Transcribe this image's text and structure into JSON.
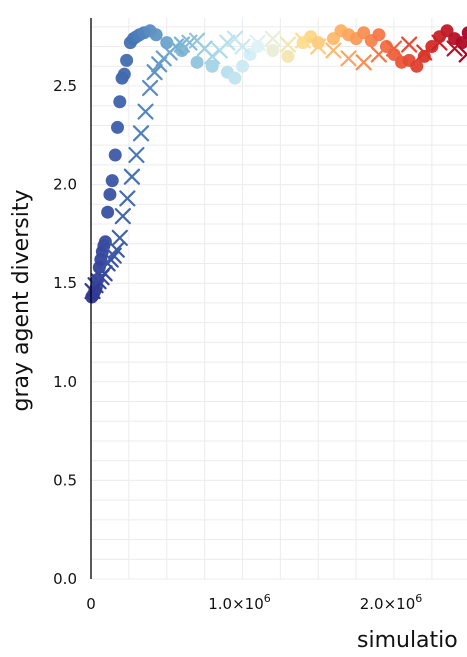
{
  "chart_data": {
    "type": "scatter",
    "xlabel": "simulatio",
    "ylabel": "gray agent diversity",
    "xlim": [
      0,
      2500000
    ],
    "ylim": [
      0,
      2.8
    ],
    "x_ticks": [
      {
        "value": 0,
        "label": "0"
      },
      {
        "value": 1000000,
        "label": "1.0×10",
        "exp": "6"
      },
      {
        "value": 2000000,
        "label": "2.0×10",
        "exp": "6"
      }
    ],
    "y_ticks": [
      {
        "value": 0.0,
        "label": "0.0"
      },
      {
        "value": 0.5,
        "label": "0.5"
      },
      {
        "value": 1.0,
        "label": "1.0"
      },
      {
        "value": 1.5,
        "label": "1.5"
      },
      {
        "value": 2.0,
        "label": "2.0"
      },
      {
        "value": 2.5,
        "label": "2.5"
      }
    ],
    "grid": true,
    "legend": "none",
    "series": [
      {
        "marker": "circle",
        "color_scale": [
          "#313695",
          "#4575b4",
          "#74add1",
          "#abd9e9",
          "#e0f3f8",
          "#fee090",
          "#fdae61",
          "#f46d43",
          "#d73027",
          "#a50026"
        ],
        "points": [
          [
            5000,
            1.43
          ],
          [
            15000,
            1.44
          ],
          [
            25000,
            1.46
          ],
          [
            35000,
            1.48
          ],
          [
            45000,
            1.52
          ],
          [
            55000,
            1.58
          ],
          [
            65000,
            1.62
          ],
          [
            75000,
            1.66
          ],
          [
            85000,
            1.69
          ],
          [
            95000,
            1.71
          ],
          [
            110000,
            1.86
          ],
          [
            125000,
            1.95
          ],
          [
            140000,
            2.02
          ],
          [
            160000,
            2.15
          ],
          [
            175000,
            2.29
          ],
          [
            190000,
            2.42
          ],
          [
            205000,
            2.54
          ],
          [
            220000,
            2.56
          ],
          [
            235000,
            2.63
          ],
          [
            260000,
            2.72
          ],
          [
            280000,
            2.74
          ],
          [
            300000,
            2.75
          ],
          [
            320000,
            2.76
          ],
          [
            350000,
            2.77
          ],
          [
            390000,
            2.78
          ],
          [
            430000,
            2.76
          ],
          [
            500000,
            2.72
          ],
          [
            600000,
            2.68
          ],
          [
            700000,
            2.62
          ],
          [
            800000,
            2.6
          ],
          [
            900000,
            2.57
          ],
          [
            950000,
            2.54
          ],
          [
            1000000,
            2.6
          ],
          [
            1050000,
            2.66
          ],
          [
            1100000,
            2.7
          ],
          [
            1200000,
            2.68
          ],
          [
            1300000,
            2.65
          ],
          [
            1400000,
            2.72
          ],
          [
            1450000,
            2.75
          ],
          [
            1500000,
            2.72
          ],
          [
            1600000,
            2.74
          ],
          [
            1650000,
            2.78
          ],
          [
            1700000,
            2.76
          ],
          [
            1750000,
            2.74
          ],
          [
            1800000,
            2.77
          ],
          [
            1850000,
            2.73
          ],
          [
            1900000,
            2.76
          ],
          [
            1950000,
            2.7
          ],
          [
            2000000,
            2.66
          ],
          [
            2050000,
            2.62
          ],
          [
            2100000,
            2.63
          ],
          [
            2150000,
            2.6
          ],
          [
            2200000,
            2.65
          ],
          [
            2250000,
            2.7
          ],
          [
            2300000,
            2.75
          ],
          [
            2350000,
            2.78
          ],
          [
            2400000,
            2.74
          ],
          [
            2450000,
            2.72
          ],
          [
            2490000,
            2.77
          ]
        ]
      },
      {
        "marker": "x",
        "color_scale": [
          "#313695",
          "#4575b4",
          "#74add1",
          "#abd9e9",
          "#e0f3f8",
          "#fee090",
          "#fdae61",
          "#f46d43",
          "#d73027",
          "#a50026"
        ],
        "points": [
          [
            10000,
            1.46
          ],
          [
            30000,
            1.49
          ],
          [
            50000,
            1.51
          ],
          [
            70000,
            1.53
          ],
          [
            90000,
            1.55
          ],
          [
            110000,
            1.6
          ],
          [
            130000,
            1.62
          ],
          [
            150000,
            1.64
          ],
          [
            170000,
            1.67
          ],
          [
            190000,
            1.73
          ],
          [
            210000,
            1.84
          ],
          [
            240000,
            1.93
          ],
          [
            270000,
            2.04
          ],
          [
            300000,
            2.15
          ],
          [
            330000,
            2.26
          ],
          [
            360000,
            2.37
          ],
          [
            390000,
            2.49
          ],
          [
            420000,
            2.57
          ],
          [
            450000,
            2.61
          ],
          [
            480000,
            2.64
          ],
          [
            520000,
            2.67
          ],
          [
            560000,
            2.7
          ],
          [
            600000,
            2.71
          ],
          [
            650000,
            2.72
          ],
          [
            700000,
            2.73
          ],
          [
            750000,
            2.69
          ],
          [
            800000,
            2.65
          ],
          [
            850000,
            2.68
          ],
          [
            900000,
            2.72
          ],
          [
            950000,
            2.74
          ],
          [
            1000000,
            2.7
          ],
          [
            1100000,
            2.72
          ],
          [
            1200000,
            2.74
          ],
          [
            1300000,
            2.71
          ],
          [
            1400000,
            2.73
          ],
          [
            1500000,
            2.7
          ],
          [
            1600000,
            2.68
          ],
          [
            1700000,
            2.64
          ],
          [
            1800000,
            2.62
          ],
          [
            1900000,
            2.66
          ],
          [
            2000000,
            2.69
          ],
          [
            2100000,
            2.71
          ],
          [
            2200000,
            2.67
          ],
          [
            2300000,
            2.72
          ],
          [
            2400000,
            2.69
          ],
          [
            2480000,
            2.66
          ]
        ]
      }
    ]
  }
}
